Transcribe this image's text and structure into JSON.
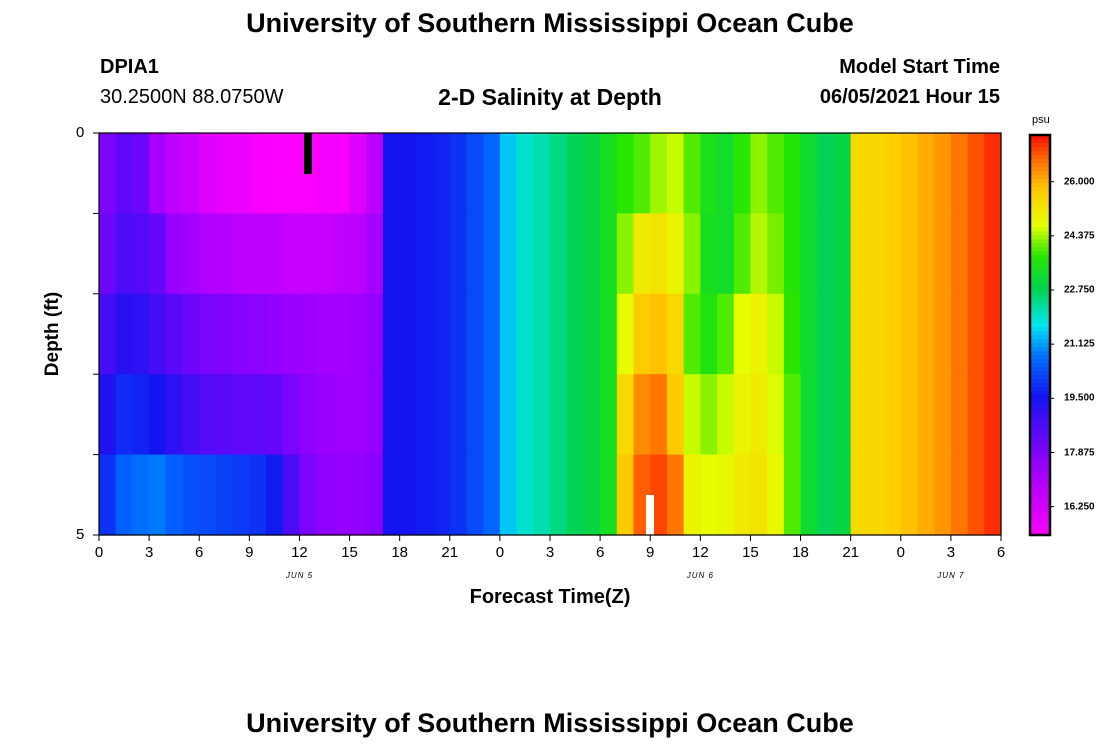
{
  "header": {
    "title": "University of Southern Mississippi Ocean Cube",
    "station_id": "DPIA1",
    "coords": "30.2500N  88.0750W",
    "plot_title": "2-D Salinity at Depth",
    "model_start_label": "Model Start Time",
    "model_start_value": "06/05/2021 Hour 15"
  },
  "footer": {
    "title": "University of Southern Mississippi Ocean Cube"
  },
  "chart_data": {
    "type": "heatmap",
    "title": "2-D Salinity at Depth",
    "xlabel": "Forecast Time(Z)",
    "ylabel": "Depth (ft)",
    "x_ticks": [
      "0",
      "3",
      "6",
      "9",
      "12",
      "15",
      "18",
      "21",
      "0",
      "3",
      "6",
      "9",
      "12",
      "15",
      "18",
      "21",
      "0",
      "3",
      "6"
    ],
    "x_range_hours": [
      0,
      54
    ],
    "y_ticks": [
      "0",
      "5"
    ],
    "y_range": [
      0,
      5
    ],
    "date_labels": [
      {
        "label": "JUN 5",
        "hour": 12
      },
      {
        "label": "JUN 6",
        "hour": 36
      },
      {
        "label": "JUN 7",
        "hour": 51
      }
    ],
    "colorbar": {
      "unit": "psu",
      "ticks": [
        "26.000",
        "24.375",
        "22.750",
        "21.125",
        "19.500",
        "17.875",
        "16.250"
      ],
      "range": [
        15.4,
        27.4
      ]
    },
    "depth_layers": [
      0,
      1,
      2,
      3,
      4,
      5
    ],
    "time_hours": [
      0,
      1,
      2,
      3,
      4,
      5,
      6,
      7,
      8,
      9,
      10,
      11,
      12,
      13,
      14,
      15,
      16,
      17,
      18,
      19,
      20,
      21,
      22,
      23,
      24,
      25,
      26,
      27,
      28,
      29,
      30,
      31,
      32,
      33,
      34,
      35,
      36,
      37,
      38,
      39,
      40,
      41,
      42,
      43,
      44,
      45,
      46,
      47,
      48,
      49,
      50,
      51,
      52,
      53
    ],
    "salinity_psu": [
      [
        17.9,
        18.4,
        18.2,
        17.2,
        16.7,
        16.5,
        16.1,
        15.9,
        15.8,
        15.6,
        15.5,
        15.5,
        15.5,
        15.6,
        15.6,
        16.1,
        16.8,
        19.6,
        19.6,
        19.7,
        19.8,
        20.0,
        20.3,
        20.7,
        21.5,
        22.0,
        22.2,
        22.5,
        22.8,
        23.0,
        23.4,
        23.8,
        24.0,
        24.4,
        24.6,
        24.0,
        23.5,
        23.3,
        23.8,
        24.3,
        24.0,
        23.7,
        23.2,
        22.8,
        23.0,
        25.5,
        25.5,
        25.7,
        25.9,
        26.1,
        26.3,
        26.6,
        26.9,
        27.2
      ],
      [
        18.2,
        18.7,
        18.6,
        18.3,
        17.5,
        17.3,
        17.0,
        16.9,
        16.8,
        16.7,
        16.7,
        16.6,
        16.6,
        16.6,
        16.7,
        16.8,
        17.2,
        19.6,
        19.6,
        19.7,
        19.8,
        20.0,
        20.3,
        20.7,
        21.5,
        22.0,
        22.2,
        22.5,
        22.8,
        23.0,
        23.4,
        24.3,
        25.2,
        25.3,
        25.0,
        24.3,
        23.4,
        23.3,
        24.0,
        24.5,
        24.2,
        23.7,
        23.2,
        22.8,
        23.0,
        25.5,
        25.5,
        25.7,
        25.9,
        26.1,
        26.3,
        26.6,
        26.9,
        27.2
      ],
      [
        18.8,
        19.3,
        19.2,
        18.8,
        18.5,
        18.2,
        18.0,
        17.9,
        17.8,
        17.7,
        17.6,
        17.5,
        17.4,
        17.3,
        17.3,
        17.4,
        17.6,
        19.6,
        19.6,
        19.7,
        19.8,
        20.0,
        20.3,
        20.7,
        21.5,
        22.0,
        22.2,
        22.5,
        22.8,
        23.0,
        23.4,
        24.8,
        25.8,
        25.9,
        25.5,
        24.0,
        23.6,
        24.0,
        24.8,
        25.0,
        24.6,
        23.8,
        23.2,
        22.8,
        23.0,
        25.5,
        25.5,
        25.7,
        25.9,
        26.1,
        26.3,
        26.6,
        26.9,
        27.2
      ],
      [
        19.4,
        19.9,
        19.8,
        19.6,
        19.2,
        18.8,
        18.6,
        18.5,
        18.4,
        18.4,
        18.3,
        18.0,
        17.7,
        17.5,
        17.4,
        17.4,
        17.6,
        19.6,
        19.6,
        19.7,
        19.8,
        20.0,
        20.3,
        20.7,
        21.5,
        22.0,
        22.2,
        22.5,
        22.8,
        23.0,
        23.4,
        25.5,
        26.4,
        26.6,
        25.8,
        24.6,
        24.3,
        24.6,
        25.0,
        25.2,
        24.7,
        24.0,
        23.2,
        22.8,
        23.0,
        25.5,
        25.5,
        25.7,
        25.9,
        26.1,
        26.3,
        26.6,
        26.9,
        27.2
      ],
      [
        20.0,
        20.6,
        20.8,
        20.9,
        20.6,
        20.4,
        20.3,
        20.2,
        20.1,
        20.0,
        19.7,
        18.7,
        18.0,
        17.7,
        17.6,
        17.6,
        17.8,
        19.6,
        19.6,
        19.7,
        19.8,
        20.0,
        20.3,
        20.7,
        21.5,
        22.0,
        22.2,
        22.5,
        22.8,
        23.0,
        23.4,
        25.8,
        26.8,
        27.0,
        26.6,
        25.0,
        24.8,
        24.9,
        25.2,
        25.3,
        24.9,
        24.0,
        23.2,
        22.8,
        23.0,
        25.5,
        25.5,
        25.7,
        25.9,
        26.1,
        26.3,
        26.6,
        26.9,
        27.2
      ]
    ]
  }
}
